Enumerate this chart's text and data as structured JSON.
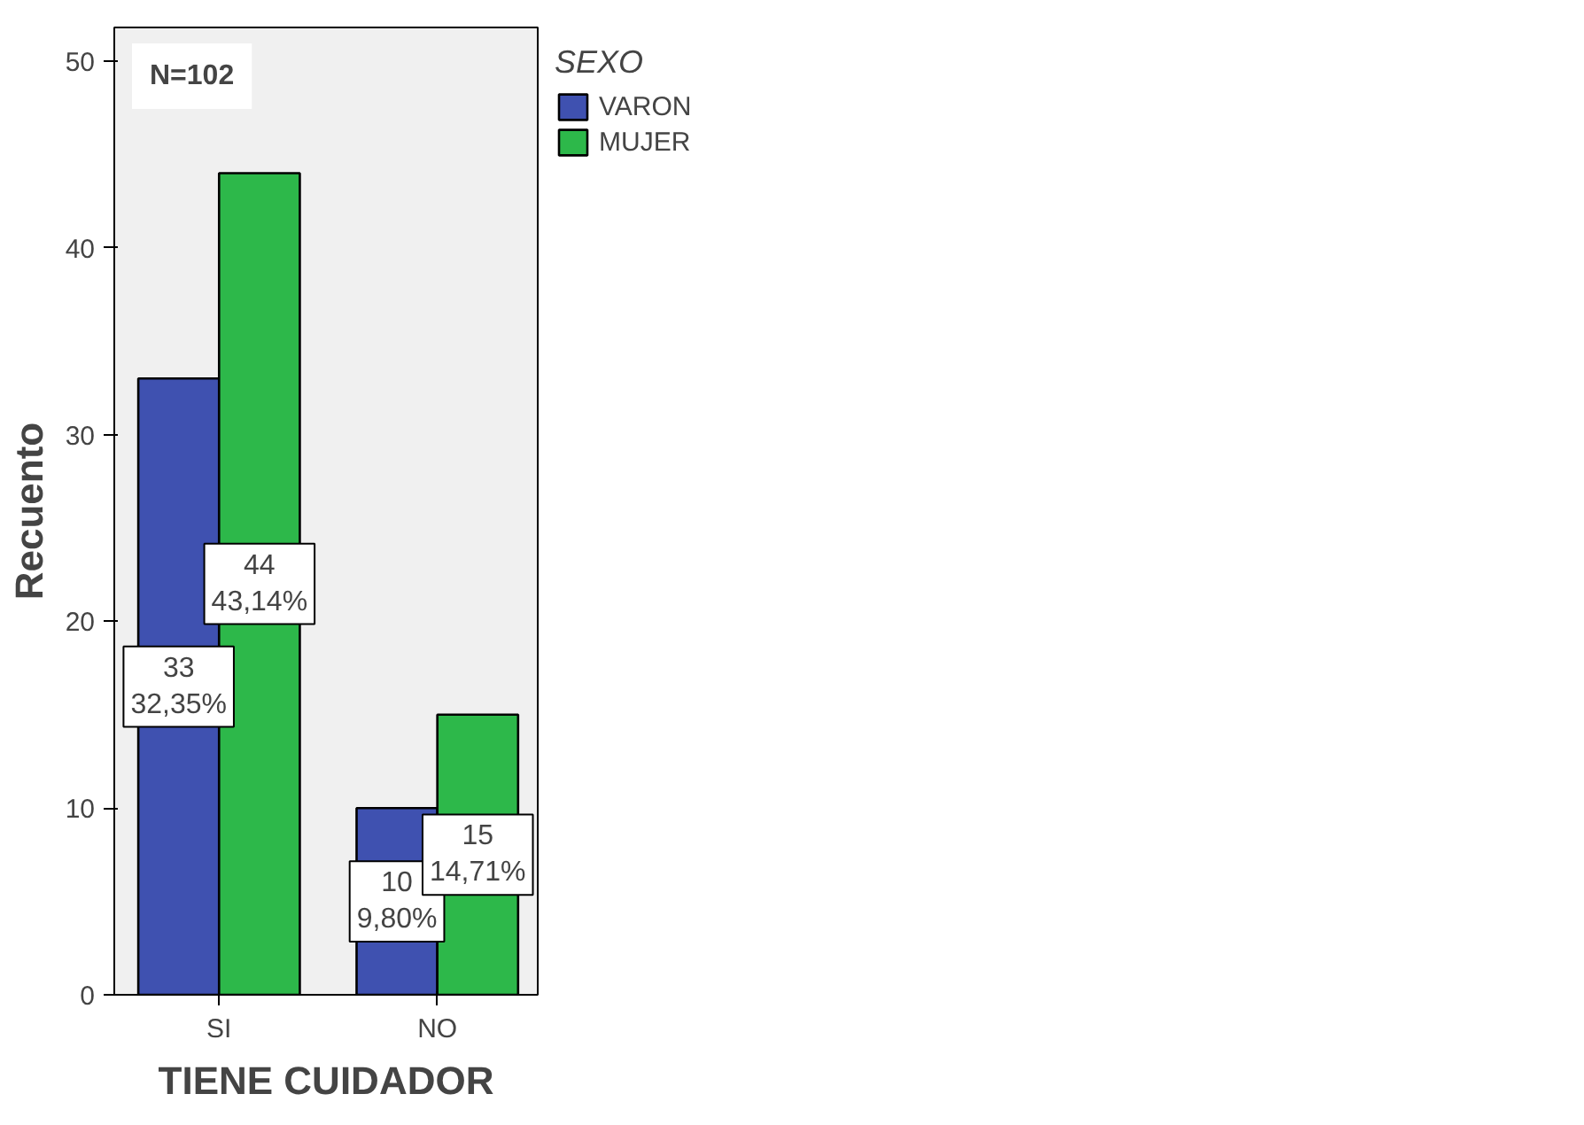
{
  "chart_data": {
    "type": "bar",
    "xlabel": "TIENE CUIDADOR",
    "ylabel": "Recuento",
    "legend_title": "SEXO",
    "legend": "right",
    "grid": false,
    "categories": [
      "SI",
      "NO"
    ],
    "series": [
      {
        "name": "VARON",
        "color": "#3f51b0",
        "values": [
          33,
          10
        ],
        "value_labels": [
          "33\n32,35%",
          "10\n9,80%"
        ]
      },
      {
        "name": "MUJER",
        "color": "#2db84a",
        "values": [
          44,
          15
        ],
        "value_labels": [
          "44\n43,14%",
          "15\n14,71%"
        ]
      }
    ],
    "ylim": [
      0,
      51.8
    ],
    "yticks": [
      0,
      10,
      20,
      30,
      40,
      50
    ],
    "annotations": [
      "N=102"
    ]
  }
}
